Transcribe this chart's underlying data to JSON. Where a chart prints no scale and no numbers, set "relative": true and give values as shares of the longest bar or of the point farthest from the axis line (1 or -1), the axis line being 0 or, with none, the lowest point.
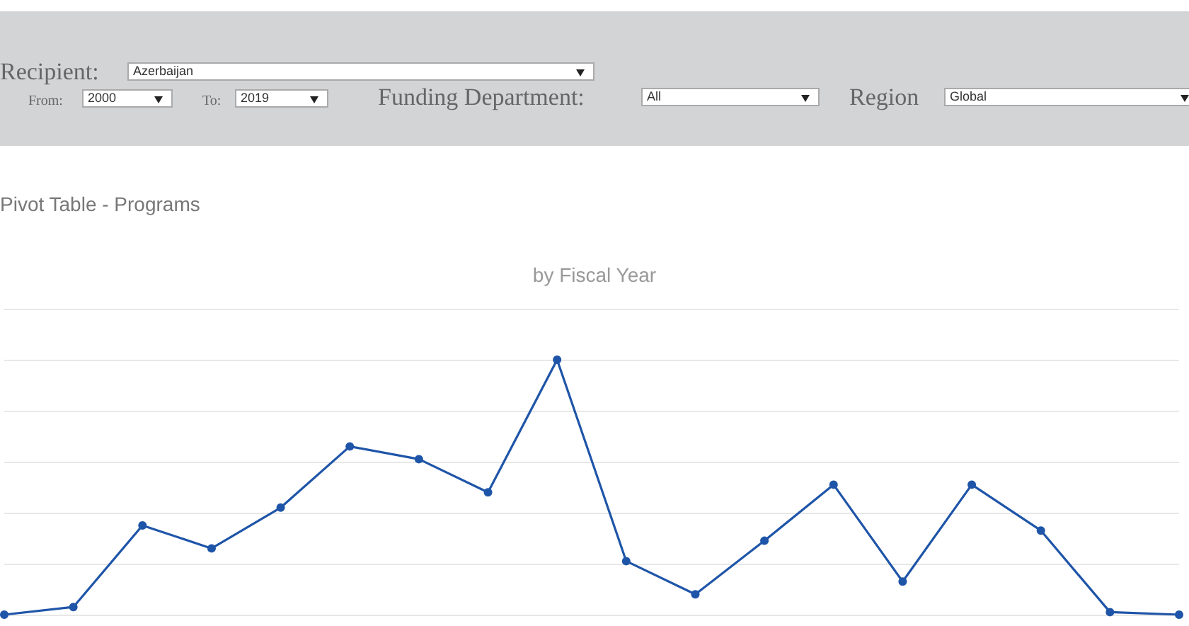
{
  "chart_data": {
    "type": "line",
    "title": "Pivot Table - Programs",
    "subtitle": "by Fiscal Year",
    "relative": true,
    "grid": "y",
    "marker": "circle",
    "line_style": "solid",
    "annotations": [
      "Recipient:",
      "Azerbaijan",
      "From:",
      "2000",
      "To:",
      "2019",
      "Funding Department:",
      "All",
      "Region",
      "Global"
    ],
    "categories": [
      null,
      null,
      null,
      null,
      null,
      null,
      null,
      null,
      null,
      null,
      null,
      null,
      null,
      null,
      null,
      null,
      null,
      null
    ],
    "series": [
      {
        "color": "#1f55a8",
        "values": [
          0,
          0.03,
          0.35,
          0.26,
          0.42,
          0.66,
          0.61,
          0.48,
          1,
          0.21,
          0.08,
          0.29,
          0.51,
          0.13,
          0.51,
          0.33,
          0.01,
          0
        ]
      }
    ]
  }
}
